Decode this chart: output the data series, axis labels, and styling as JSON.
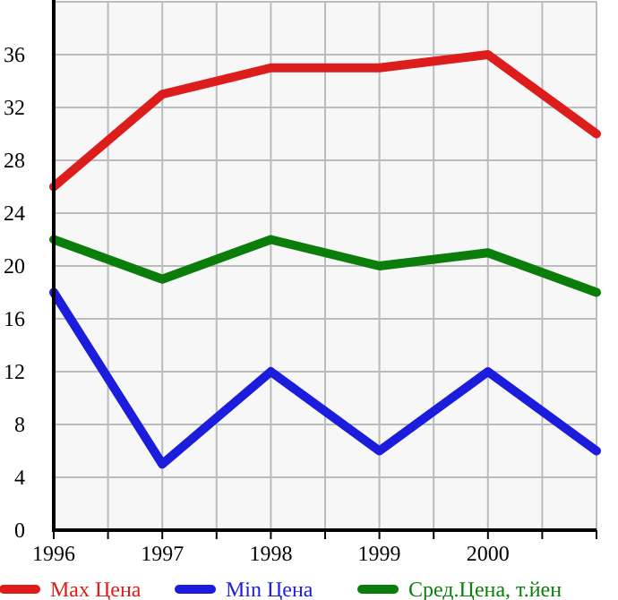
{
  "chart_data": {
    "type": "line",
    "x": [
      1996,
      1997,
      1998,
      1999,
      2000,
      2001
    ],
    "series": [
      {
        "name": "Max Цена",
        "color": "#dd1c1c",
        "values": [
          26,
          33,
          35,
          35,
          36,
          30
        ]
      },
      {
        "name": "Min Цена",
        "color": "#1c1cdd",
        "values": [
          18,
          5,
          12,
          6,
          12,
          6
        ]
      },
      {
        "name": "Сред.Цена, т.йен",
        "color": "#0a7d0a",
        "values": [
          22,
          19,
          22,
          20,
          21,
          18
        ]
      }
    ],
    "xlim": [
      1996,
      2001
    ],
    "xticks": [
      1996,
      {
        "value": 1996.5,
        "label": null
      },
      1997,
      {
        "value": 1997.5,
        "label": null
      },
      1998,
      {
        "value": 1998.5,
        "label": null
      },
      1999,
      {
        "value": 1999.5,
        "label": null
      },
      2000,
      {
        "value": 2000.5,
        "label": null
      },
      {
        "value": 2001,
        "label": null
      }
    ],
    "ylim": [
      0,
      40
    ],
    "yticks": [
      0,
      4,
      8,
      12,
      16,
      20,
      24,
      28,
      32,
      36,
      {
        "value": 40,
        "label": null
      }
    ],
    "grid": true,
    "legend": "bottom",
    "marker": "none",
    "line_style": "solid"
  }
}
